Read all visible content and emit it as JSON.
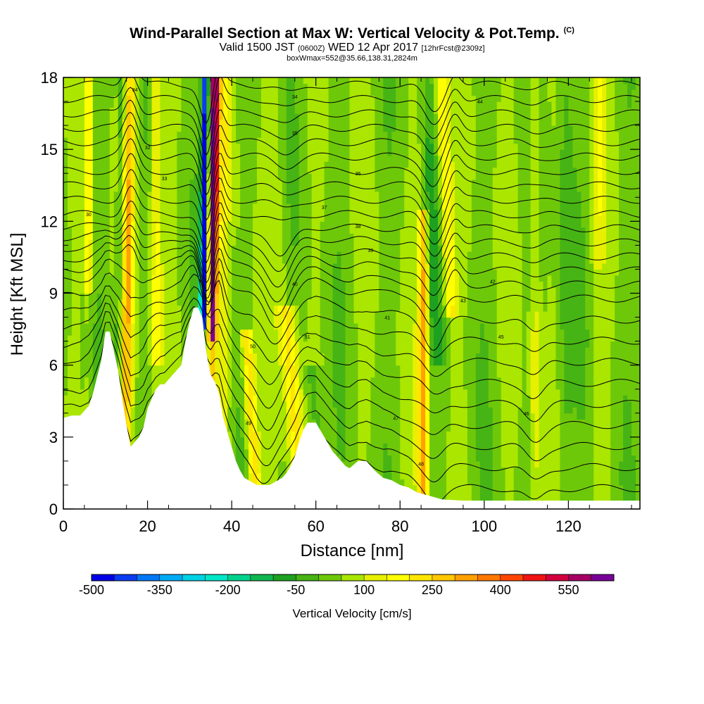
{
  "title": {
    "main": "Wind-Parallel Section at Max W: Vertical Velocity & Pot.Temp.",
    "corner_mark": "(C)",
    "valid_prefix": "Valid 1500 JST",
    "valid_zulu": "(0600Z)",
    "valid_date": "WED 12 Apr 2017",
    "forecast": "[12hrFcst@2309z]",
    "box_info": "boxWmax=552@35.66,138.31,2824m"
  },
  "chart_data": {
    "type": "heatmap",
    "title": "Wind-Parallel Section at Max W: Vertical Velocity & Pot.Temp.",
    "xlabel": "Distance [nm]",
    "ylabel": "Height [Kft MSL]",
    "xlim": [
      0,
      137
    ],
    "ylim": [
      0,
      18
    ],
    "x_ticks": [
      0,
      20,
      40,
      60,
      80,
      100,
      120
    ],
    "y_ticks": [
      0,
      3,
      6,
      9,
      12,
      15,
      18
    ],
    "grid": false,
    "colorbar": {
      "label": "Vertical Velocity [cm/s]",
      "levels": [
        -500,
        -450,
        -400,
        -350,
        -300,
        -250,
        -200,
        -150,
        -100,
        -50,
        0,
        50,
        100,
        150,
        200,
        250,
        300,
        350,
        400,
        450,
        500,
        550,
        600
      ],
      "tick_labels": [
        -500,
        -350,
        -200,
        -50,
        100,
        250,
        400,
        550
      ],
      "colors": [
        "#0000e6",
        "#0a3cf0",
        "#0078f5",
        "#00aaf5",
        "#00d2e6",
        "#00e6c8",
        "#00d28c",
        "#10b650",
        "#1ea020",
        "#46b414",
        "#6ec80a",
        "#aae600",
        "#e6f000",
        "#ffff00",
        "#ffe600",
        "#ffc800",
        "#ffa000",
        "#ff7800",
        "#ff4600",
        "#f01414",
        "#d2003c",
        "#a50064",
        "#780096"
      ]
    },
    "terrain_kft": {
      "x": [
        0,
        1,
        2,
        4,
        6,
        7,
        8,
        9,
        10,
        11,
        13,
        14,
        15,
        16,
        18,
        19,
        20,
        21,
        22,
        23,
        24,
        26,
        28,
        29,
        30,
        31,
        32,
        33,
        34,
        35,
        36,
        37,
        38,
        39,
        40,
        41,
        42,
        43,
        44,
        45,
        46,
        47,
        48,
        49,
        50,
        51,
        52,
        53,
        54,
        55,
        56,
        57,
        58,
        60,
        61,
        62,
        63,
        64,
        65,
        66,
        67,
        68,
        70,
        72,
        74,
        76,
        78,
        80,
        82,
        84,
        86,
        88,
        90,
        95,
        100,
        110,
        120,
        130,
        137
      ],
      "y": [
        3.8,
        3.85,
        3.9,
        3.9,
        4.3,
        4.8,
        5.5,
        6.2,
        7.4,
        7.4,
        5.8,
        4.6,
        3.5,
        2.6,
        3.0,
        3.4,
        4.2,
        4.6,
        5.0,
        5.2,
        5.2,
        5.6,
        6.0,
        7.0,
        7.8,
        8.4,
        8.4,
        8.0,
        6.5,
        5.6,
        5.3,
        4.8,
        3.8,
        3.2,
        2.6,
        2.0,
        1.6,
        1.3,
        1.2,
        1.1,
        1.0,
        1.0,
        1.0,
        1.0,
        1.1,
        1.2,
        1.3,
        1.5,
        1.8,
        2.2,
        2.8,
        3.3,
        3.6,
        3.6,
        3.3,
        3.0,
        2.7,
        2.4,
        2.2,
        2.0,
        1.8,
        1.7,
        2.0,
        2.0,
        1.6,
        1.3,
        1.2,
        1.0,
        0.9,
        0.7,
        0.6,
        0.5,
        0.4,
        0.35,
        0.35,
        0.35,
        0.35,
        0.35,
        0.35
      ]
    },
    "updraft_bands": [
      {
        "x": [
          12.5,
          18.5
        ],
        "w": [
          -50,
          300,
          -50
        ],
        "top": 18
      },
      {
        "x": [
          33.5,
          36.5
        ],
        "w": [
          -450,
          552,
          250
        ],
        "top": 18
      },
      {
        "x": [
          43,
          47
        ],
        "w": [
          250
        ],
        "top": 7
      },
      {
        "x": [
          52,
          57
        ],
        "w": [
          200
        ],
        "top": 8
      },
      {
        "x": [
          84,
          87
        ],
        "w": [
          300
        ],
        "top": 12
      },
      {
        "x": [
          90,
          95
        ],
        "w": [
          150
        ],
        "top": 18
      }
    ],
    "isentropes_kft": [
      0.6,
      1.5,
      2.4,
      3.3,
      4.2,
      5.1,
      6.0,
      6.9,
      7.8,
      8.7,
      9.3,
      9.9,
      10.5,
      11.1,
      11.7,
      12.3,
      12.9,
      13.5,
      14.1,
      14.7,
      15.3,
      15.9,
      16.5,
      17.1,
      17.7
    ],
    "isentrope_labels": [
      {
        "text": "30",
        "x": 6,
        "y": 12.3
      },
      {
        "text": "32",
        "x": 20,
        "y": 15.1
      },
      {
        "text": "33",
        "x": 24,
        "y": 13.8
      },
      {
        "text": "34",
        "x": 17,
        "y": 17.5
      },
      {
        "text": "34",
        "x": 55,
        "y": 17.2
      },
      {
        "text": "35",
        "x": 55,
        "y": 15.7
      },
      {
        "text": "36",
        "x": 70,
        "y": 14.0
      },
      {
        "text": "37",
        "x": 62,
        "y": 12.6
      },
      {
        "text": "38",
        "x": 70,
        "y": 11.8
      },
      {
        "text": "39",
        "x": 73,
        "y": 10.8
      },
      {
        "text": "40",
        "x": 55,
        "y": 9.4
      },
      {
        "text": "41",
        "x": 77,
        "y": 8.0
      },
      {
        "text": "42",
        "x": 102,
        "y": 9.5
      },
      {
        "text": "43",
        "x": 95,
        "y": 8.7
      },
      {
        "text": "44",
        "x": 99,
        "y": 17.0
      },
      {
        "text": "45",
        "x": 104,
        "y": 7.2
      },
      {
        "text": "46",
        "x": 110,
        "y": 4.0
      },
      {
        "text": "47",
        "x": 79,
        "y": 3.8
      },
      {
        "text": "48",
        "x": 85,
        "y": 1.9
      },
      {
        "text": "49",
        "x": 44,
        "y": 3.6
      },
      {
        "text": "50",
        "x": 45,
        "y": 6.8
      },
      {
        "text": "51",
        "x": 58,
        "y": 7.2
      }
    ]
  }
}
